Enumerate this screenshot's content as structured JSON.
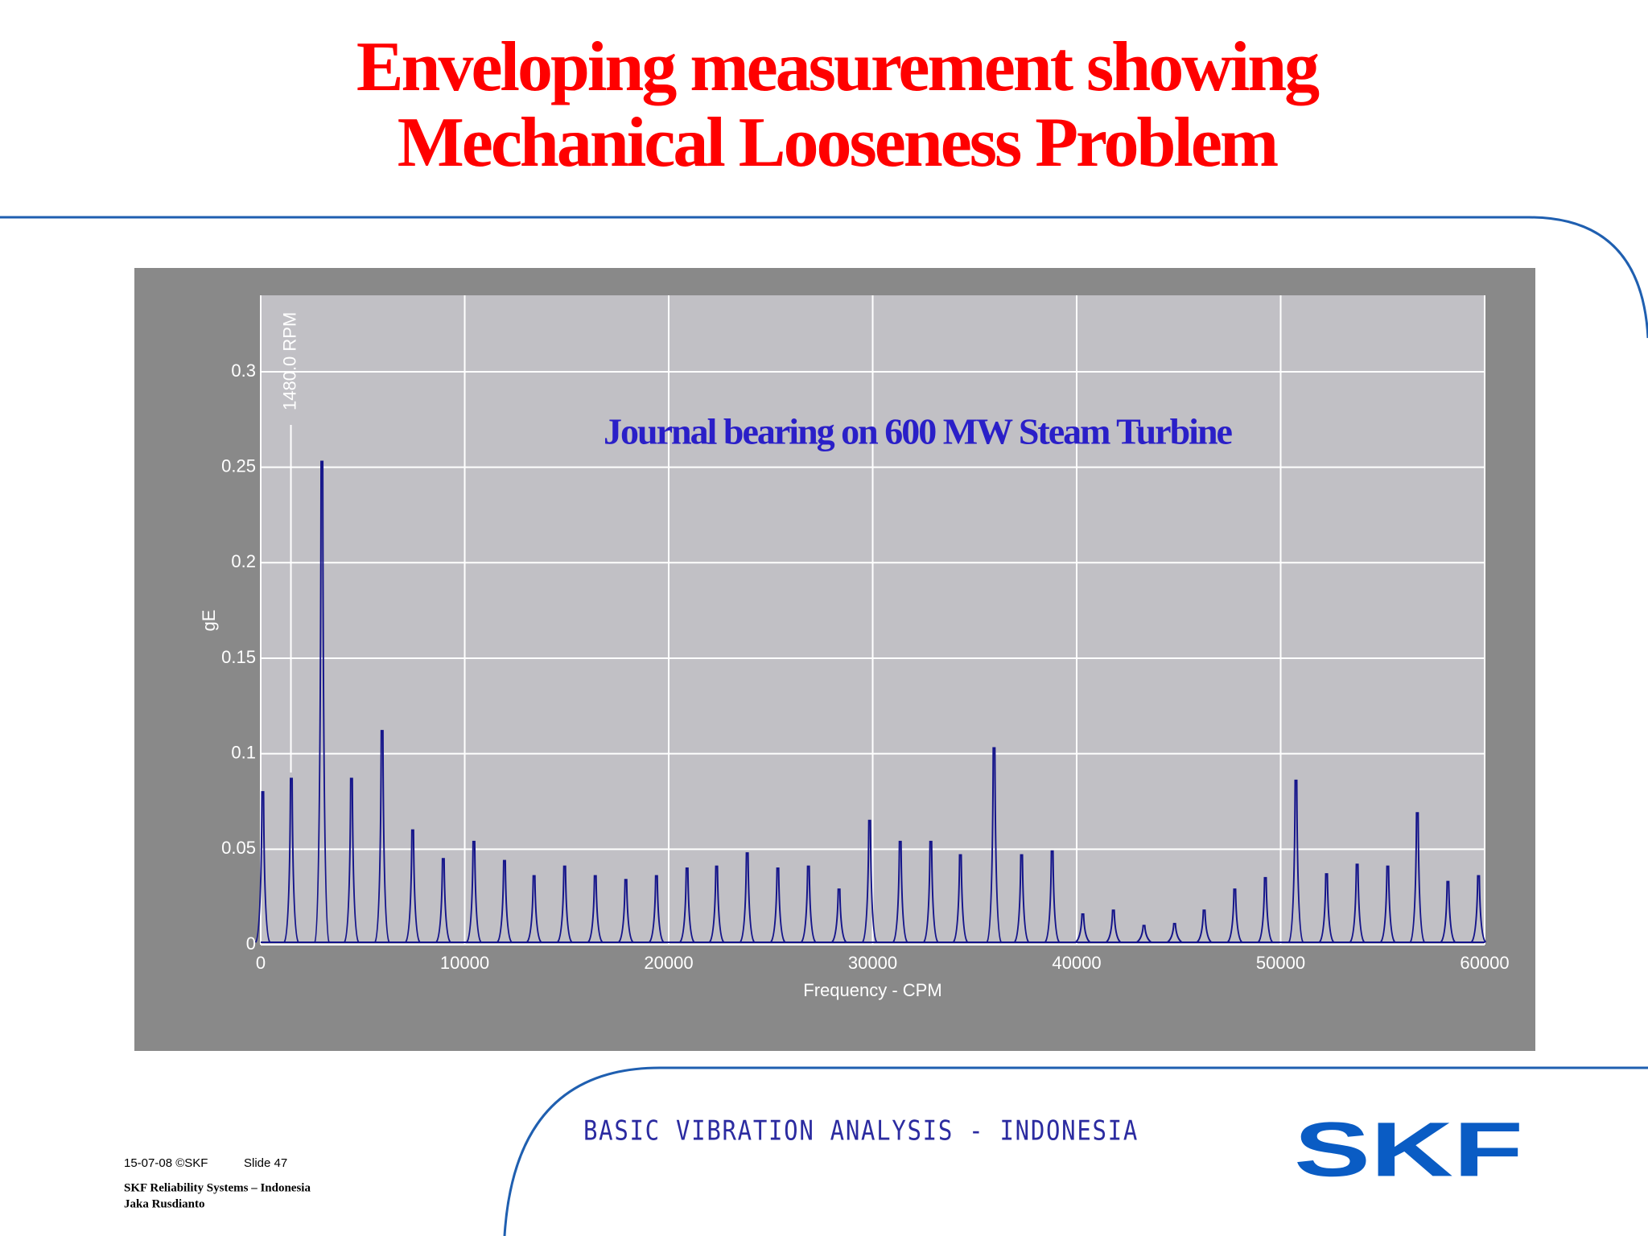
{
  "slide": {
    "title": [
      "Enveloping measurement showing",
      "Mechanical Looseness Problem"
    ],
    "banner": "BASIC VIBRATION ANALYSIS - INDONESIA",
    "logo": "SKF",
    "date": "15-07-08  ©SKF",
    "slide_number": "Slide 47",
    "organization": "SKF Reliability Systems – Indonesia",
    "author": "Jaka Rusdianto"
  },
  "chart_data": {
    "type": "spectrum",
    "annotation": "Journal bearing on 600 MW Steam Turbine",
    "marker_label": "1480.0 RPM",
    "marker_x": 1480,
    "xlabel": "Frequency - CPM",
    "ylabel": "gE",
    "xlim": [
      0,
      60000
    ],
    "ylim": [
      0,
      0.34
    ],
    "xticks": [
      0,
      10000,
      20000,
      30000,
      40000,
      50000,
      60000
    ],
    "yticks": [
      0,
      0.05,
      0.1,
      0.15,
      0.2,
      0.25,
      0.3
    ],
    "grid": true,
    "color": "#14148a",
    "x": [
      100,
      1500,
      3000,
      4450,
      5950,
      7450,
      8950,
      10450,
      11950,
      13400,
      14900,
      16400,
      17900,
      19400,
      20900,
      22350,
      23850,
      25350,
      26850,
      28350,
      29850,
      31350,
      32850,
      34300,
      35950,
      37300,
      38800,
      40300,
      41800,
      43300,
      44800,
      46250,
      47750,
      49250,
      50750,
      52250,
      53750,
      55250,
      56700,
      58200,
      59700
    ],
    "values": [
      0.08,
      0.087,
      0.253,
      0.087,
      0.112,
      0.06,
      0.045,
      0.054,
      0.044,
      0.036,
      0.041,
      0.036,
      0.034,
      0.036,
      0.04,
      0.041,
      0.048,
      0.04,
      0.041,
      0.029,
      0.065,
      0.054,
      0.054,
      0.047,
      0.103,
      0.047,
      0.049,
      0.016,
      0.018,
      0.01,
      0.011,
      0.018,
      0.029,
      0.035,
      0.086,
      0.037,
      0.042,
      0.041,
      0.069,
      0.033,
      0.036
    ]
  }
}
